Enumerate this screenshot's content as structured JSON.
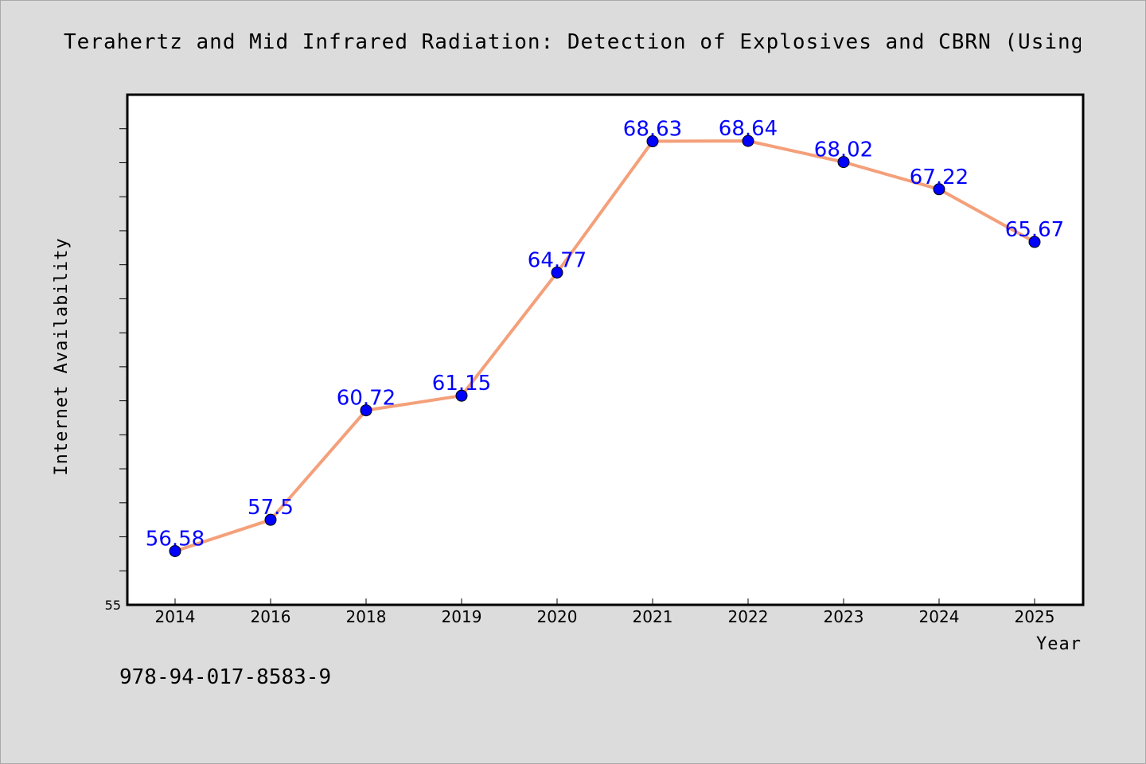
{
  "title": "Terahertz and Mid Infrared Radiation: Detection of Explosives and CBRN (Using Te",
  "footer_text": "978-94-017-8583-9",
  "colors": {
    "background": "#dcdcdc",
    "plot_background": "#ffffff",
    "line": "#f4a07a",
    "marker": "#0000ff",
    "data_label": "#0000ff"
  },
  "chart_data": {
    "type": "line",
    "title": "Terahertz and Mid Infrared Radiation: Detection of Explosives and CBRN (Using Te",
    "xlabel": "Year",
    "ylabel": "Internet Availability",
    "categories": [
      "2014",
      "2016",
      "2018",
      "2019",
      "2020",
      "2021",
      "2022",
      "2023",
      "2024",
      "2025"
    ],
    "values": [
      56.58,
      57.5,
      60.72,
      61.15,
      64.77,
      68.63,
      68.64,
      68.02,
      67.22,
      65.67
    ],
    "data_labels": [
      "56.58",
      "57.5",
      "60.72",
      "61.15",
      "64.77",
      "68.63",
      "68.64",
      "68.02",
      "67.22",
      "65.67"
    ],
    "ylim": [
      55,
      70
    ],
    "y_tick_label": "55",
    "grid": false,
    "legend": "none"
  }
}
